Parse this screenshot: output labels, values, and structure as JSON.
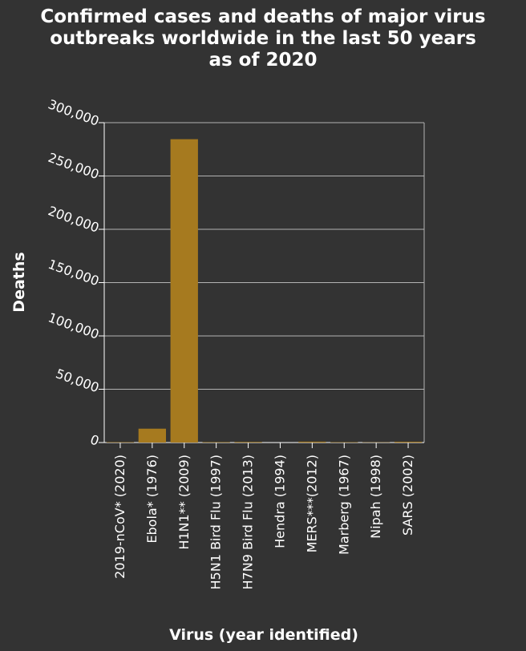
{
  "chart_data": {
    "type": "bar",
    "title": "Confirmed cases and deaths of major virus outbreaks worldwide in the last 50 years as of 2020",
    "title_lines": [
      "Confirmed cases and deaths of major virus",
      "outbreaks worldwide in the last 50 years",
      "as of 2020"
    ],
    "xlabel": "Virus (year identified)",
    "ylabel": "Deaths",
    "categories": [
      "2019-nCoV* (2020)",
      "Ebola* (1976)",
      "H1N1** (2009)",
      "H5N1 Bird Flu (1997)",
      "H7N9 Bird Flu (2013)",
      "Hendra (1994)",
      "MERS***(2012)",
      "Marberg (1967)",
      "Nipah (1998)",
      "SARS (2002)"
    ],
    "values": [
      400,
      13000,
      284500,
      450,
      600,
      4,
      860,
      370,
      260,
      774
    ],
    "ylim": [
      0,
      300000
    ],
    "yticks": [
      0,
      50000,
      100000,
      150000,
      200000,
      250000,
      300000
    ],
    "ytick_labels": [
      "0",
      "50,000",
      "100,000",
      "150,000",
      "200,000",
      "250,000",
      "300,000"
    ],
    "grid": true,
    "bar_color": "#a67a1f",
    "grid_color": "#b3b3b3"
  }
}
